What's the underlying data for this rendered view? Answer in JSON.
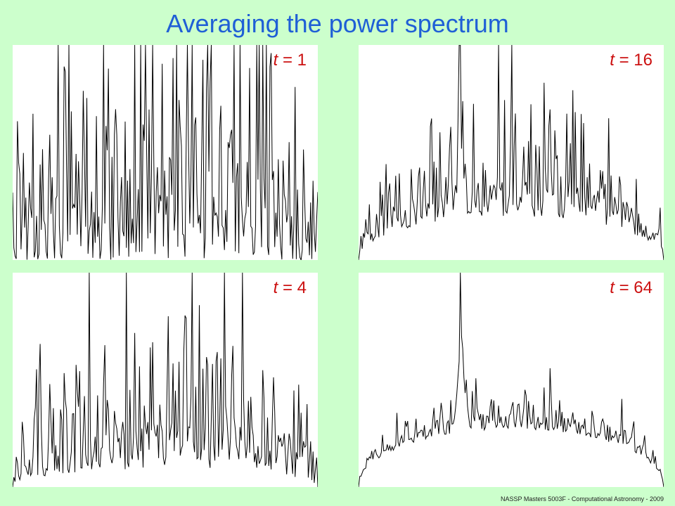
{
  "title": "Averaging the power spectrum",
  "footer": "NASSP Masters 5003F - Computational Astronomy - 2009",
  "colors": {
    "background": "#ccffcc",
    "title": "#1f5fd6",
    "label": "#cc1111",
    "trace": "#000000"
  },
  "chart_data": [
    {
      "type": "line",
      "label_var": "t",
      "label_eq": " = ",
      "label_val": "1",
      "n_points": 256,
      "ylim": [
        0,
        1
      ],
      "envelope_peak": 0.3,
      "noise": 1.0,
      "line_feature": {
        "x_frac": 0.36,
        "height": 0.0
      }
    },
    {
      "type": "line",
      "label_var": "t",
      "label_eq": " = ",
      "label_val": "16",
      "n_points": 256,
      "ylim": [
        0,
        1
      ],
      "envelope_peak": 0.37,
      "noise": 0.45,
      "line_feature": {
        "x_frac": 0.335,
        "height": 0.48
      }
    },
    {
      "type": "line",
      "label_var": "t",
      "label_eq": " = ",
      "label_val": "4",
      "n_points": 256,
      "ylim": [
        0,
        1
      ],
      "envelope_peak": 0.34,
      "noise": 0.75,
      "line_feature": {
        "x_frac": 0.36,
        "height": 0.0
      }
    },
    {
      "type": "line",
      "label_var": "t",
      "label_eq": " = ",
      "label_val": "64",
      "n_points": 256,
      "ylim": [
        0,
        1
      ],
      "envelope_peak": 0.33,
      "noise": 0.18,
      "line_feature": {
        "x_frac": 0.335,
        "height": 0.48
      }
    }
  ]
}
